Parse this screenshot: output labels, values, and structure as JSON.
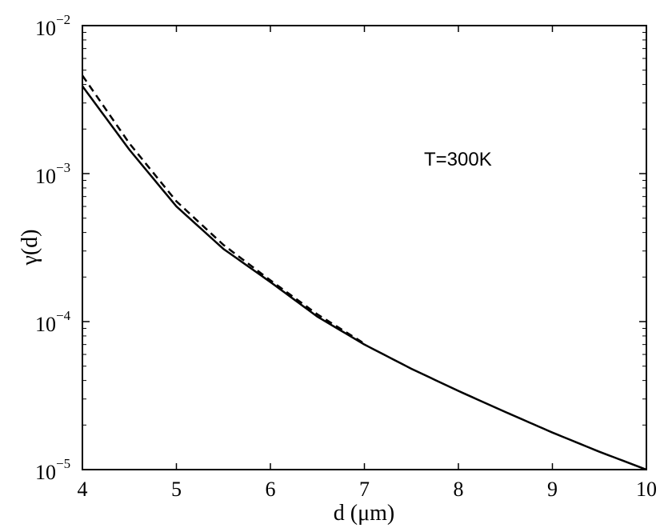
{
  "chart_data": {
    "type": "line",
    "title": "",
    "xlabel": "d (μm)",
    "ylabel": "γ(d)",
    "xlim": [
      4,
      10
    ],
    "ylim": [
      1e-05,
      0.01
    ],
    "yscale": "log",
    "grid": false,
    "x_ticks": [
      "4",
      "5",
      "6",
      "7",
      "8",
      "9",
      "10"
    ],
    "y_ticks": [
      {
        "base": "10",
        "exp": "−2"
      },
      {
        "base": "10",
        "exp": "−3"
      },
      {
        "base": "10",
        "exp": "−4"
      },
      {
        "base": "10",
        "exp": "−5"
      }
    ],
    "annotation": "T=300K",
    "series": [
      {
        "style": "solid",
        "x": [
          4,
          4.5,
          5,
          5.5,
          6,
          6.5,
          7,
          7.5,
          8,
          8.5,
          9,
          9.5,
          10
        ],
        "y": [
          0.0039,
          0.00145,
          0.0006,
          0.00031,
          0.000185,
          0.000108,
          7e-05,
          4.8e-05,
          3.4e-05,
          2.45e-05,
          1.78e-05,
          1.32e-05,
          1e-05
        ]
      },
      {
        "style": "dashed",
        "x": [
          4,
          4.5,
          5,
          5.5,
          6,
          6.5,
          7
        ],
        "y": [
          0.0046,
          0.0016,
          0.00065,
          0.00033,
          0.00019,
          0.000112,
          7.1e-05
        ]
      }
    ]
  }
}
